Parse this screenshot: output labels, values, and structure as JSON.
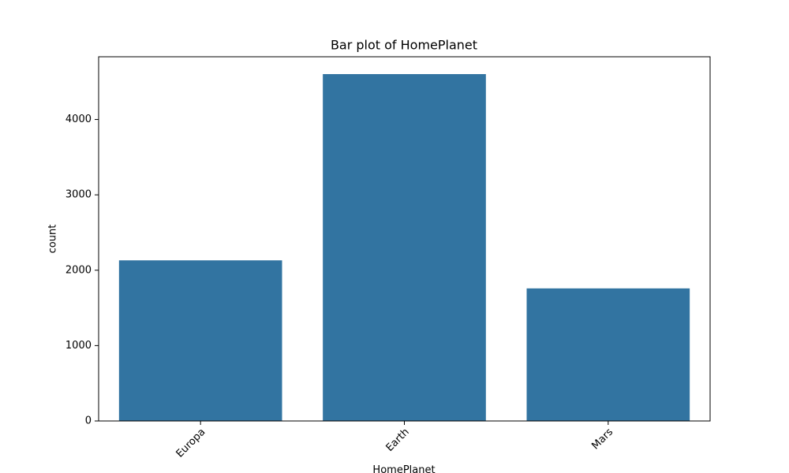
{
  "chart_data": {
    "type": "bar",
    "title": "Bar plot of HomePlanet",
    "x_label": "HomePlanet",
    "y_label": "count",
    "categories": [
      "Europa",
      "Earth",
      "Mars"
    ],
    "values": [
      2131,
      4602,
      1759
    ],
    "color": "#3274a1",
    "ylim": [
      0,
      4832
    ],
    "yticks": [
      0,
      1000,
      2000,
      3000,
      4000
    ],
    "grid": false
  }
}
